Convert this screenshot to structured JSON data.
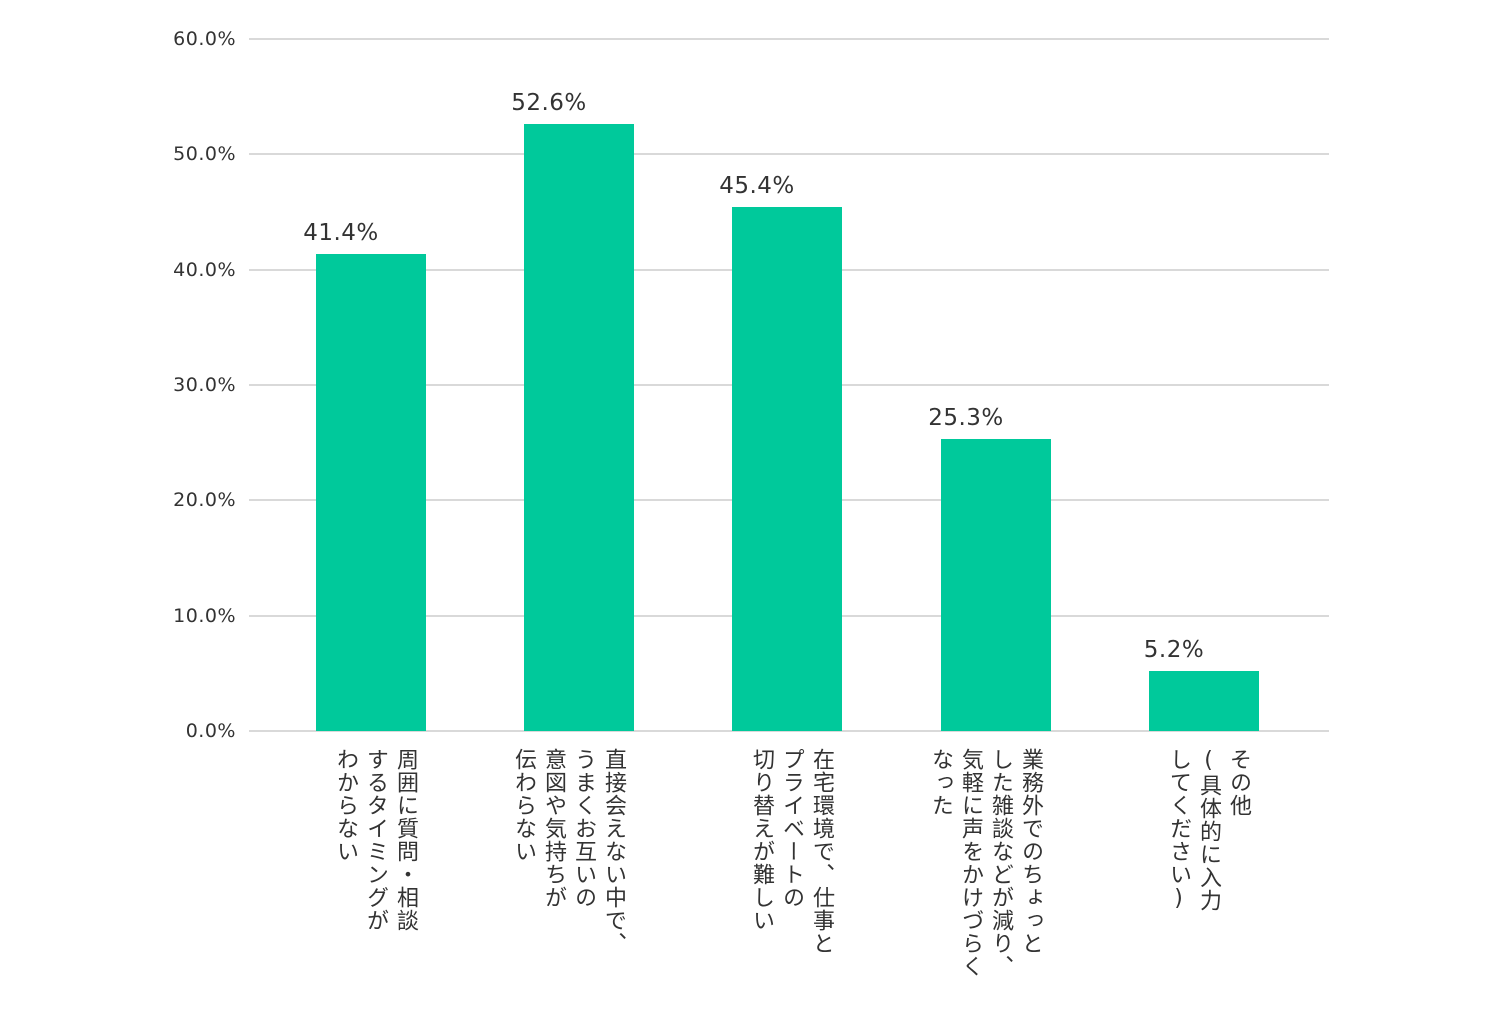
{
  "chart_data": {
    "type": "bar",
    "title": "",
    "xlabel": "",
    "ylabel": "",
    "ylim": [
      0,
      60
    ],
    "yticks": [
      "0.0%",
      "10.0%",
      "20.0%",
      "30.0%",
      "40.0%",
      "50.0%",
      "60.0%"
    ],
    "grid": true,
    "legend": "none",
    "bar_color": "#00c99b",
    "categories": [
      "周囲に質問・相談するタイミングがわからない",
      "直接会えない中で、うまくお互いの意図や気持ちが伝わらない",
      "在宅環境で、仕事とプライベートの切り替えが難しい",
      "業務外でのちょっとした雑談などが減り、気軽に声をかけづらくなった",
      "その他（具体的に入力してください）"
    ],
    "category_lines": [
      [
        "周囲に質問・相談",
        "するタイミングが",
        "わからない"
      ],
      [
        "直接会えない中で、",
        "うまくお互いの",
        "意図や気持ちが",
        "伝わらない"
      ],
      [
        "在宅環境で、仕事と",
        "プライベートの",
        "切り替えが難しい"
      ],
      [
        "業務外でのちょっと",
        "した雑談などが減り、",
        "気軽に声をかけづらく",
        "なった"
      ],
      [
        "その他",
        "(具体的に入力",
        "してください)"
      ]
    ],
    "values": [
      41.4,
      52.6,
      45.4,
      25.3,
      5.2
    ],
    "value_labels": [
      "41.4%",
      "52.6%",
      "45.4%",
      "25.3%",
      "5.2%"
    ]
  }
}
